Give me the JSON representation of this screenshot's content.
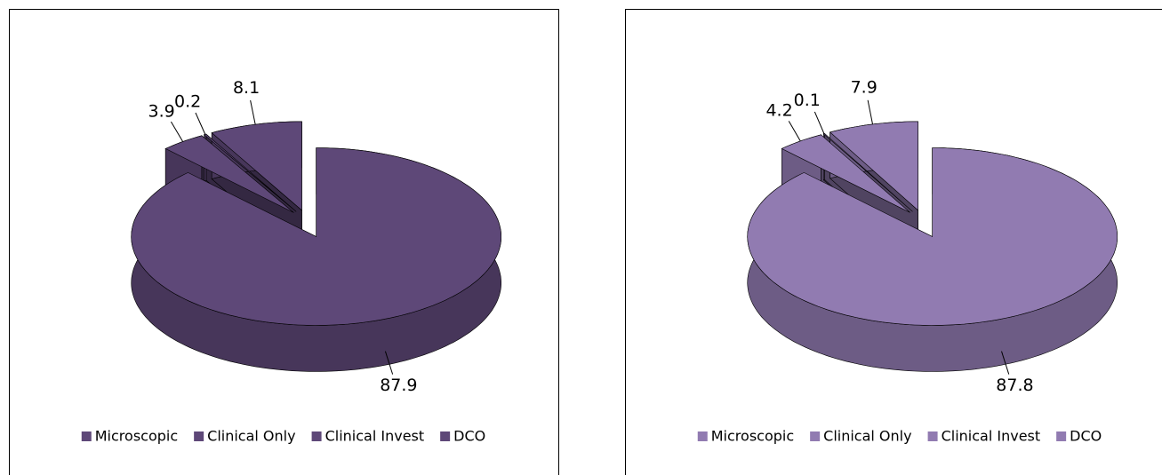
{
  "chart_data": [
    {
      "type": "pie",
      "categories": [
        "Microscopic",
        "Clinical Only",
        "Clinical Invest",
        "DCO"
      ],
      "values": [
        87.9,
        3.9,
        0.2,
        8.1
      ],
      "color": "#5e4878"
    },
    {
      "type": "pie",
      "categories": [
        "Microscopic",
        "Clinical Only",
        "Clinical Invest",
        "DCO"
      ],
      "values": [
        87.8,
        4.2,
        0.1,
        7.9
      ],
      "color": "#917bb1"
    }
  ]
}
